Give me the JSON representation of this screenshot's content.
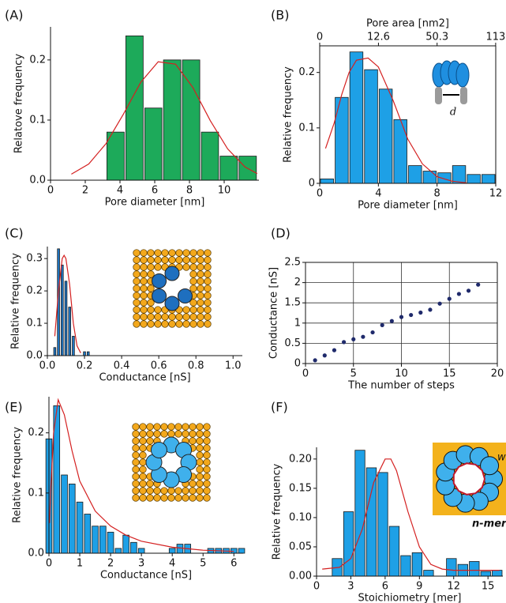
{
  "chart_data": [
    {
      "type": "histogram",
      "panel": "(A)",
      "xlabel": "Pore diameter [nm]",
      "ylabel": "Relatove frequency",
      "color": "#1daa5a",
      "bins": [
        3.2,
        4.29,
        5.38,
        6.46,
        7.55,
        8.64,
        9.72,
        10.81,
        11.9
      ],
      "values": [
        0.08,
        0.24,
        0.12,
        0.2,
        0.2,
        0.08,
        0.04,
        0.04
      ],
      "fit": {
        "color": "#d42020",
        "x": [
          1.2,
          2.2,
          3.2,
          4.2,
          5.2,
          6.2,
          7.2,
          8.2,
          9.2,
          10.2,
          11.2,
          11.9
        ],
        "values": [
          0.01,
          0.027,
          0.061,
          0.11,
          0.163,
          0.197,
          0.193,
          0.154,
          0.099,
          0.052,
          0.022,
          0.011
        ]
      },
      "xlim": [
        0,
        12
      ],
      "xticks": [
        0,
        2,
        4,
        6,
        8,
        10
      ],
      "ylim": [
        0,
        0.255
      ],
      "yticks": [
        {
          "value": 0,
          "label": "0.0"
        },
        0.1,
        0.2
      ],
      "frame": false
    },
    {
      "type": "histogram",
      "panel": "(B)",
      "xlabel": "Pore diameter [nm]",
      "ylabel": "Relative frequency",
      "color": "#1ea0e6",
      "x2label": "Pore area [nm2]",
      "x2ticks": [
        0,
        12.6,
        50.3,
        113
      ],
      "bins": [
        0,
        1,
        2,
        3,
        4,
        5,
        6,
        7,
        8,
        9,
        10,
        11,
        12
      ],
      "values": [
        0.008,
        0.155,
        0.237,
        0.205,
        0.17,
        0.115,
        0.032,
        0.022,
        0.019,
        0.032,
        0.016,
        0.016
      ],
      "fit": {
        "color": "#d42020",
        "x": [
          0.4,
          1,
          1.5,
          2,
          2.5,
          3.3,
          4,
          5,
          6,
          7,
          8,
          9,
          10
        ],
        "values": [
          0.063,
          0.11,
          0.16,
          0.2,
          0.222,
          0.226,
          0.21,
          0.15,
          0.08,
          0.035,
          0.012,
          0.004,
          0.001
        ]
      },
      "annotation": "d",
      "xlim": [
        0,
        12
      ],
      "xticks": [
        0,
        4,
        8,
        12
      ],
      "ylim": [
        0,
        0.248
      ],
      "yticks": [
        0,
        0.1,
        0.2
      ],
      "frame": true
    },
    {
      "type": "histogram",
      "panel": "(C)",
      "xlabel": "Conductance [nS]",
      "ylabel": "Relative frequency",
      "color": "#1e78c8",
      "bins": [
        0.03,
        0.05,
        0.07,
        0.09,
        0.11,
        0.13,
        0.15,
        0.17,
        0.19,
        0.21,
        0.23
      ],
      "values": [
        0.025,
        0.33,
        0.28,
        0.23,
        0.15,
        0.06,
        0,
        0,
        0.012,
        0.012
      ],
      "fit": {
        "color": "#d42020",
        "x": [
          0.04,
          0.06,
          0.08,
          0.09,
          0.1,
          0.12,
          0.14,
          0.16,
          0.18
        ],
        "values": [
          0.06,
          0.2,
          0.3,
          0.31,
          0.3,
          0.22,
          0.1,
          0.03,
          0.008
        ]
      },
      "xlim": [
        0,
        1.05
      ],
      "xticks": [
        {
          "value": 0,
          "label": "0.0"
        },
        0.2,
        0.4,
        0.6,
        0.8,
        {
          "value": 1,
          "label": "1.0"
        }
      ],
      "ylim": [
        0,
        0.337
      ],
      "yticks": [
        {
          "value": 0,
          "label": "0.0"
        },
        0.1,
        0.2,
        0.3
      ],
      "frame": false
    },
    {
      "type": "scatter",
      "panel": "(D)",
      "xlabel": "The number of steps",
      "ylabel": "Conductance [nS]",
      "color": "#1f2a6b",
      "x": [
        1,
        2,
        3,
        4,
        5,
        6,
        7,
        8,
        9,
        10,
        11,
        12,
        13,
        14,
        15,
        16,
        17,
        18
      ],
      "values": [
        0.08,
        0.2,
        0.33,
        0.53,
        0.6,
        0.66,
        0.77,
        0.95,
        1.05,
        1.15,
        1.2,
        1.26,
        1.33,
        1.48,
        1.6,
        1.72,
        1.8,
        1.95
      ],
      "xlim": [
        0,
        20
      ],
      "xticks": [
        0,
        5,
        10,
        15,
        20
      ],
      "ylim": [
        0,
        2.5
      ],
      "yticks": [
        0,
        0.5,
        1,
        1.5,
        2,
        2.5
      ],
      "grid": true,
      "frame": true
    },
    {
      "type": "histogram",
      "panel": "(E)",
      "xlabel": "Conductance [nS]",
      "ylabel": "Relative frequency",
      "color": "#1ea0e6",
      "bins": [
        -0.125,
        0.125,
        0.375,
        0.625,
        0.875,
        1.125,
        1.375,
        1.625,
        1.875,
        2.125,
        2.375,
        2.625,
        2.875,
        3.125,
        3.375,
        3.625,
        3.875,
        4.125,
        4.375,
        4.625,
        4.875,
        5.125,
        5.375,
        5.625,
        5.875,
        6.125,
        6.375
      ],
      "values": [
        0.19,
        0.245,
        0.13,
        0.115,
        0.085,
        0.065,
        0.045,
        0.045,
        0.035,
        0.008,
        0.03,
        0.018,
        0.008,
        0,
        0,
        0,
        0.008,
        0.015,
        0.015,
        0,
        0,
        0.008,
        0.008,
        0.008,
        0.008,
        0.008
      ],
      "fit": {
        "color": "#d42020",
        "x": [
          0.02,
          0.05,
          0.15,
          0.3,
          0.5,
          0.75,
          1,
          1.5,
          2,
          2.5,
          3,
          4,
          5,
          6
        ],
        "values": [
          0.05,
          0.1,
          0.2,
          0.255,
          0.23,
          0.17,
          0.12,
          0.07,
          0.045,
          0.03,
          0.02,
          0.01,
          0.005,
          0.003
        ]
      },
      "xlim": [
        0,
        6.3
      ],
      "xticks": [
        0,
        1,
        2,
        3,
        4,
        5,
        6
      ],
      "ylim": [
        0,
        0.26
      ],
      "yticks": [
        {
          "value": 0,
          "label": "0.0"
        },
        0.1,
        0.2
      ],
      "frame": false
    },
    {
      "type": "histogram",
      "panel": "(F)",
      "xlabel": "Stoichiometry [mer]",
      "ylabel": "Relative frequency",
      "color": "#1ea0e6",
      "bins": [
        1.3,
        2.3,
        3.3,
        4.3,
        5.3,
        6.3,
        7.3,
        8.3,
        9.3,
        10.3,
        11.3,
        12.3,
        13.3,
        14.3,
        15.3,
        16.3
      ],
      "values": [
        0.03,
        0.11,
        0.215,
        0.185,
        0.177,
        0.085,
        0.035,
        0.04,
        0.01,
        0,
        0.03,
        0.02,
        0.025,
        0.008,
        0.01
      ],
      "fit": {
        "color": "#d42020",
        "x": [
          0.5,
          2,
          3,
          4,
          5,
          6,
          6.5,
          7,
          8,
          9,
          10,
          11,
          12,
          16
        ],
        "values": [
          0.012,
          0.015,
          0.03,
          0.08,
          0.16,
          0.2,
          0.2,
          0.18,
          0.11,
          0.05,
          0.02,
          0.012,
          0.01,
          0.01
        ]
      },
      "annotation": "w",
      "annotation2": "n-mer",
      "xlim": [
        0,
        16.3
      ],
      "xticks": [
        0,
        3,
        6,
        9,
        12,
        15
      ],
      "ylim": [
        0,
        0.22
      ],
      "yticks": [
        {
          "value": 0,
          "label": "0.00"
        },
        0.05,
        {
          "value": 0.1,
          "label": "0.10"
        },
        0.15,
        {
          "value": 0.2,
          "label": "0.20"
        }
      ],
      "frame": false
    }
  ]
}
